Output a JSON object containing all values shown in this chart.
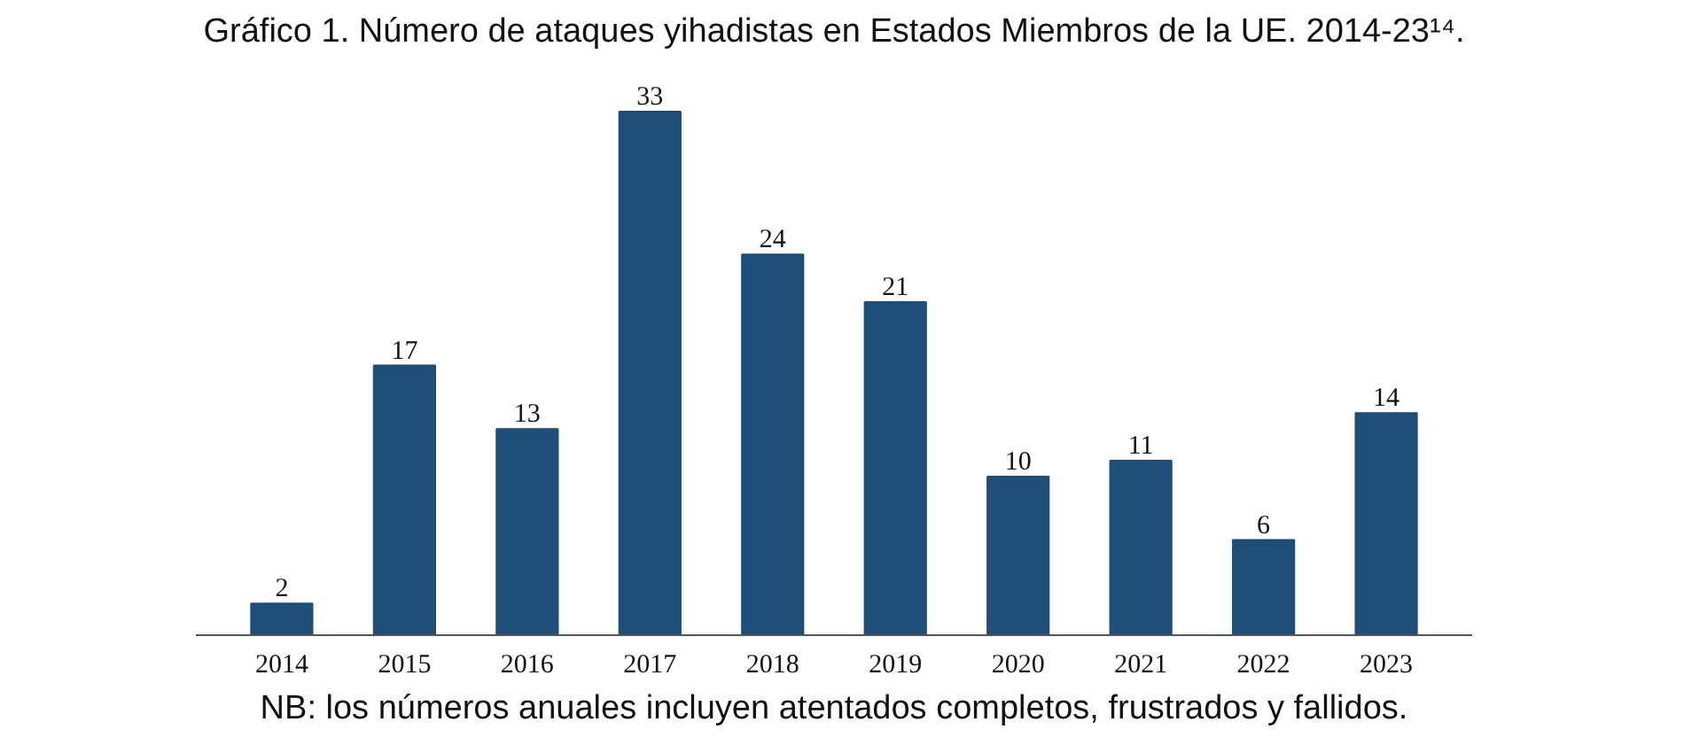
{
  "chart_data": {
    "type": "bar",
    "title": "Gráfico 1. Número de ataques yihadistas en Estados Miembros de la UE. 2014-23¹⁴.",
    "categories": [
      "2014",
      "2015",
      "2016",
      "2017",
      "2018",
      "2019",
      "2020",
      "2021",
      "2022",
      "2023"
    ],
    "values": [
      2,
      17,
      13,
      33,
      24,
      21,
      10,
      11,
      6,
      14
    ],
    "color": "#1f4e79",
    "data_labels": true,
    "tick_labels": "x",
    "grid": false,
    "annotations": [
      "NB: los números anuales incluyen atentados completos, frustrados y fallidos."
    ]
  }
}
